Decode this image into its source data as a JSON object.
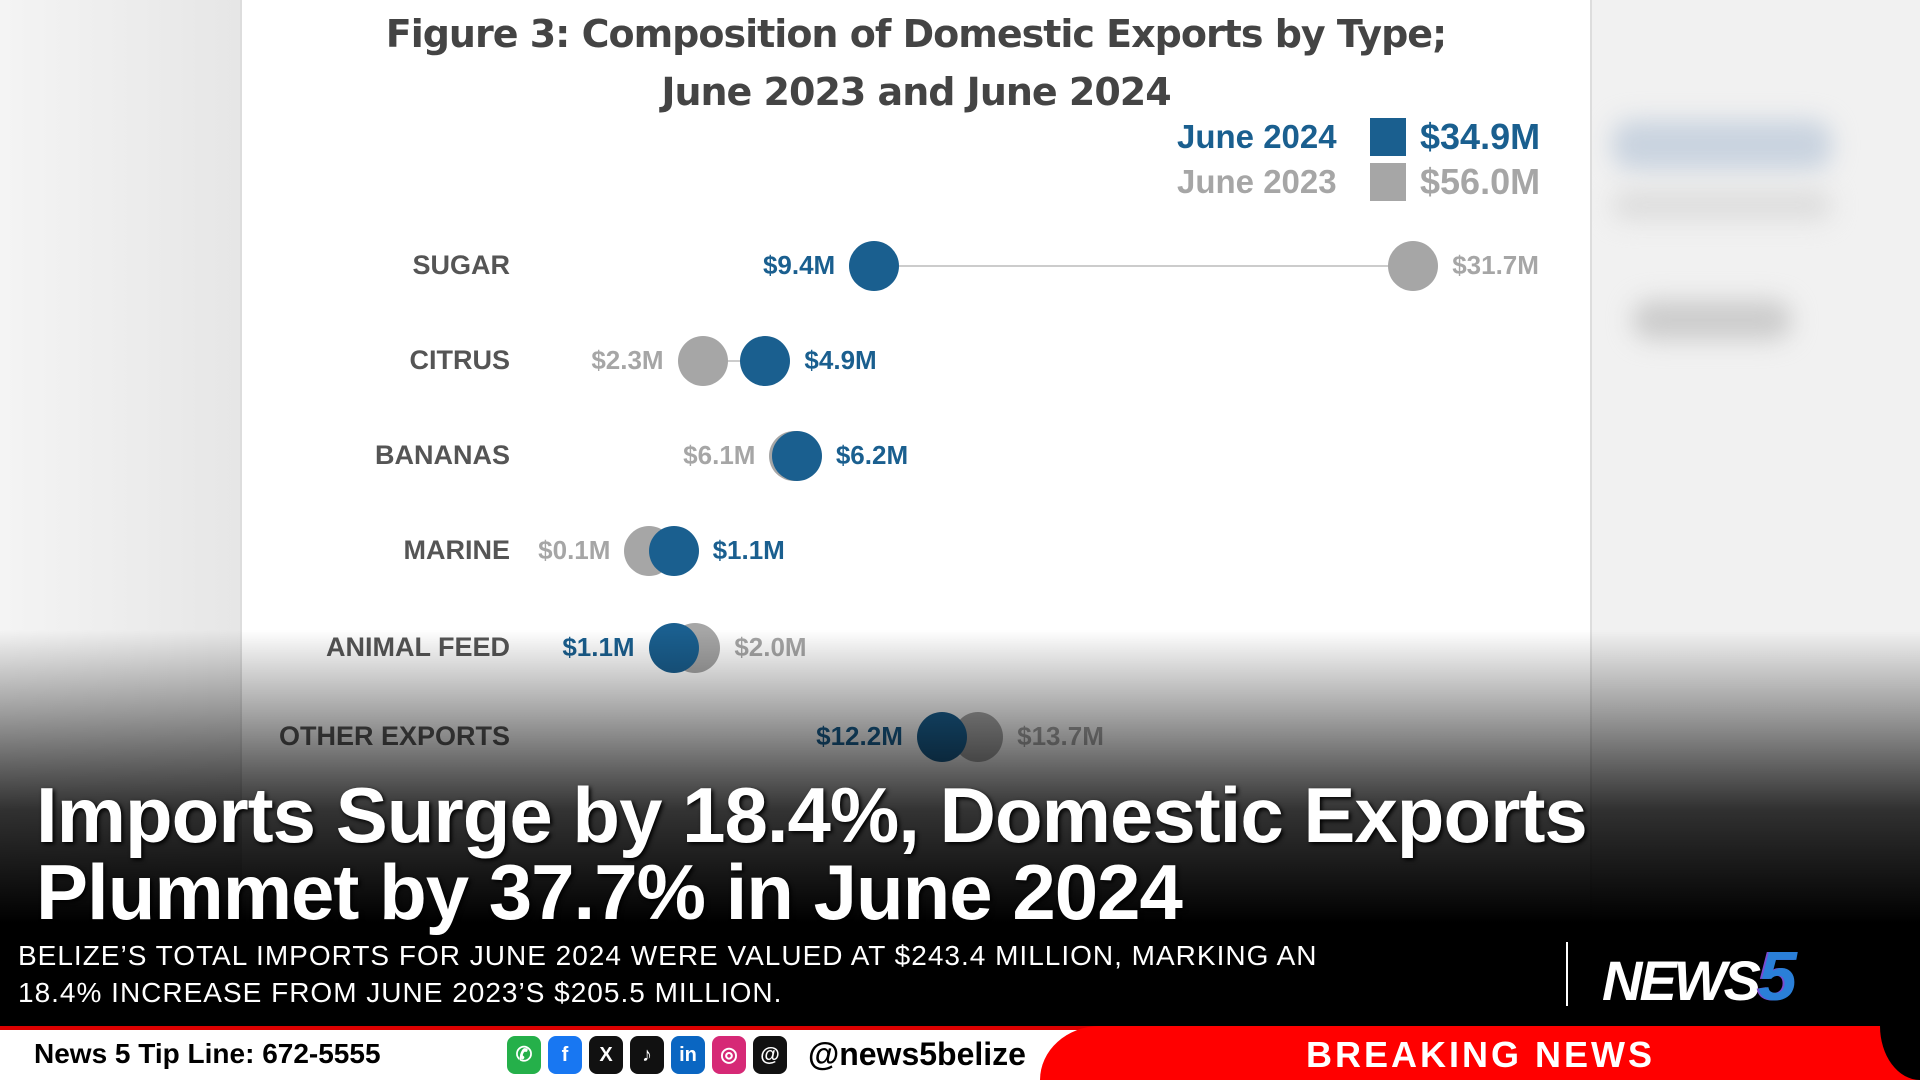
{
  "chart_data": {
    "type": "dot-plot",
    "title_line1": "Figure 3: Composition of Domestic Exports by Type;",
    "title_line2": "June 2023 and June 2024",
    "legend": [
      {
        "name": "June 2024",
        "total": "$34.9M",
        "color": "#1a5f8f"
      },
      {
        "name": "June 2023",
        "total": "$56.0M",
        "color": "#a6a6a6"
      }
    ],
    "categories": [
      "SUGAR",
      "CITRUS",
      "BANANAS",
      "MARINE",
      "ANIMAL FEED",
      "OTHER EXPORTS"
    ],
    "series": [
      {
        "name": "June 2024",
        "values": [
          9.4,
          4.9,
          6.2,
          1.1,
          1.1,
          12.2
        ],
        "labels": [
          "$9.4M",
          "$4.9M",
          "$6.2M",
          "$1.1M",
          "$1.1M",
          "$12.2M"
        ]
      },
      {
        "name": "June 2023",
        "values": [
          31.7,
          2.3,
          6.1,
          0.1,
          2.0,
          13.7
        ],
        "labels": [
          "$31.7M",
          "$2.3M",
          "$6.1M",
          "$0.1M",
          "$2.0M",
          "$13.7M"
        ]
      }
    ],
    "unit": "$ million"
  },
  "headline": {
    "line1": "Imports Surge by 18.4%, Domestic Exports",
    "line2": "Plummet by 37.7% in June 2024"
  },
  "subtitle": {
    "line1": "BELIZE’S TOTAL IMPORTS FOR JUNE 2024 WERE VALUED AT $243.4 MILLION, MARKING AN",
    "line2": "18.4% INCREASE FROM JUNE 2023’S $205.5 MILLION."
  },
  "logo": {
    "text": "NEWS",
    "number": "5"
  },
  "ticker": {
    "tip_line": "News 5 Tip Line: 672-5555",
    "handle": "@news5belize",
    "breaking": "BREAKING NEWS"
  },
  "social": [
    {
      "icon": "whatsapp-icon",
      "glyph": "✆",
      "color": "#25b04a"
    },
    {
      "icon": "facebook-icon",
      "glyph": "f",
      "color": "#1877f2"
    },
    {
      "icon": "x-icon",
      "glyph": "X",
      "color": "#111"
    },
    {
      "icon": "tiktok-icon",
      "glyph": "♪",
      "color": "#111"
    },
    {
      "icon": "linkedin-icon",
      "glyph": "in",
      "color": "#0a66c2"
    },
    {
      "icon": "instagram-icon",
      "glyph": "◎",
      "color": "#d62976"
    },
    {
      "icon": "threads-icon",
      "glyph": "@",
      "color": "#111"
    }
  ]
}
